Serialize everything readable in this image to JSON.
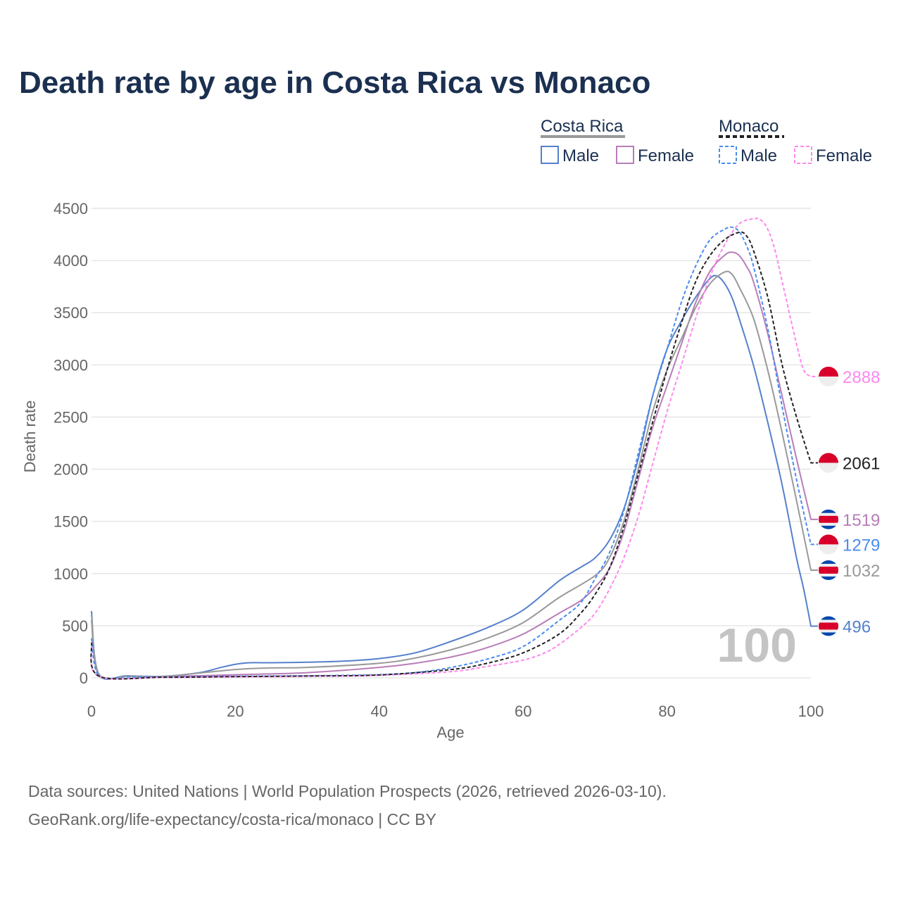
{
  "chart_data": {
    "type": "line",
    "title": "Death rate by age in Costa Rica vs Monaco",
    "xlabel": "Age",
    "ylabel": "Death rate",
    "xlim": [
      0,
      100
    ],
    "ylim": [
      0,
      4500
    ],
    "xticks": [
      0,
      20,
      40,
      60,
      80,
      100
    ],
    "yticks": [
      0,
      500,
      1000,
      1500,
      2000,
      2500,
      3000,
      3500,
      4000,
      4500
    ],
    "grid": true,
    "legend_groups": [
      {
        "label": "Costa Rica",
        "color": "#999999",
        "dash": false
      },
      {
        "label": "Monaco",
        "color": "#222222",
        "dash": true
      }
    ],
    "legend_items": [
      {
        "label": "Male",
        "color": "#5580cc",
        "dash": false
      },
      {
        "label": "Female",
        "color": "#b87db8",
        "dash": false
      },
      {
        "label": "Male",
        "color": "#4a8cf0",
        "dash": true
      },
      {
        "label": "Female",
        "color": "#ff88ee",
        "dash": true
      }
    ],
    "annotation": "100",
    "series": [
      {
        "name": "Costa Rica Male",
        "country": "costa-rica",
        "color": "#5580cc",
        "dash": false,
        "end_label": "496",
        "points": [
          [
            0,
            640
          ],
          [
            1,
            40
          ],
          [
            5,
            20
          ],
          [
            10,
            15
          ],
          [
            15,
            50
          ],
          [
            18,
            100
          ],
          [
            20,
            130
          ],
          [
            22,
            145
          ],
          [
            25,
            145
          ],
          [
            30,
            150
          ],
          [
            35,
            160
          ],
          [
            40,
            185
          ],
          [
            45,
            240
          ],
          [
            50,
            350
          ],
          [
            55,
            480
          ],
          [
            60,
            650
          ],
          [
            65,
            930
          ],
          [
            68,
            1060
          ],
          [
            70,
            1150
          ],
          [
            72,
            1320
          ],
          [
            74,
            1620
          ],
          [
            76,
            2100
          ],
          [
            78,
            2700
          ],
          [
            80,
            3150
          ],
          [
            82,
            3420
          ],
          [
            84,
            3650
          ],
          [
            86,
            3830
          ],
          [
            87,
            3850
          ],
          [
            88,
            3780
          ],
          [
            89,
            3650
          ],
          [
            90,
            3450
          ],
          [
            92,
            3000
          ],
          [
            94,
            2450
          ],
          [
            96,
            1850
          ],
          [
            98,
            1150
          ],
          [
            99,
            850
          ],
          [
            100,
            496
          ]
        ]
      },
      {
        "name": "Costa Rica Female",
        "country": "costa-rica",
        "color": "#b87db8",
        "dash": false,
        "end_label": "1519",
        "points": [
          [
            0,
            550
          ],
          [
            1,
            30
          ],
          [
            5,
            15
          ],
          [
            10,
            12
          ],
          [
            20,
            30
          ],
          [
            30,
            50
          ],
          [
            40,
            100
          ],
          [
            45,
            140
          ],
          [
            50,
            200
          ],
          [
            55,
            290
          ],
          [
            60,
            420
          ],
          [
            65,
            620
          ],
          [
            68,
            740
          ],
          [
            70,
            870
          ],
          [
            72,
            1050
          ],
          [
            74,
            1400
          ],
          [
            76,
            1900
          ],
          [
            78,
            2400
          ],
          [
            80,
            2800
          ],
          [
            82,
            3200
          ],
          [
            84,
            3600
          ],
          [
            86,
            3900
          ],
          [
            88,
            4050
          ],
          [
            89,
            4080
          ],
          [
            90,
            4050
          ],
          [
            91,
            3950
          ],
          [
            92,
            3800
          ],
          [
            94,
            3300
          ],
          [
            96,
            2700
          ],
          [
            98,
            2100
          ],
          [
            100,
            1519
          ]
        ]
      },
      {
        "name": "Costa Rica",
        "country": "costa-rica",
        "color": "#999999",
        "dash": false,
        "end_label": "1032",
        "points": [
          [
            0,
            600
          ],
          [
            1,
            35
          ],
          [
            5,
            18
          ],
          [
            10,
            14
          ],
          [
            20,
            80
          ],
          [
            25,
            95
          ],
          [
            30,
            100
          ],
          [
            40,
            140
          ],
          [
            45,
            190
          ],
          [
            50,
            270
          ],
          [
            55,
            380
          ],
          [
            60,
            530
          ],
          [
            65,
            770
          ],
          [
            70,
            980
          ],
          [
            72,
            1150
          ],
          [
            74,
            1500
          ],
          [
            76,
            2000
          ],
          [
            78,
            2550
          ],
          [
            80,
            2950
          ],
          [
            82,
            3250
          ],
          [
            84,
            3550
          ],
          [
            86,
            3780
          ],
          [
            88,
            3890
          ],
          [
            89,
            3870
          ],
          [
            90,
            3750
          ],
          [
            92,
            3450
          ],
          [
            94,
            2950
          ],
          [
            96,
            2350
          ],
          [
            98,
            1700
          ],
          [
            100,
            1032
          ]
        ]
      },
      {
        "name": "Monaco Male",
        "country": "monaco",
        "color": "#4a8cf0",
        "dash": true,
        "end_label": "1279",
        "points": [
          [
            0,
            380
          ],
          [
            1,
            20
          ],
          [
            5,
            10
          ],
          [
            10,
            8
          ],
          [
            20,
            15
          ],
          [
            30,
            20
          ],
          [
            40,
            30
          ],
          [
            45,
            50
          ],
          [
            50,
            100
          ],
          [
            55,
            180
          ],
          [
            60,
            300
          ],
          [
            65,
            550
          ],
          [
            68,
            720
          ],
          [
            70,
            950
          ],
          [
            72,
            1200
          ],
          [
            74,
            1600
          ],
          [
            76,
            2150
          ],
          [
            78,
            2700
          ],
          [
            80,
            3150
          ],
          [
            82,
            3600
          ],
          [
            84,
            3950
          ],
          [
            86,
            4200
          ],
          [
            88,
            4300
          ],
          [
            89,
            4320
          ],
          [
            90,
            4280
          ],
          [
            91,
            4150
          ],
          [
            92,
            3950
          ],
          [
            94,
            3350
          ],
          [
            96,
            2600
          ],
          [
            98,
            1900
          ],
          [
            100,
            1279
          ]
        ]
      },
      {
        "name": "Monaco Female",
        "country": "monaco",
        "color": "#ff88ee",
        "dash": true,
        "end_label": "2888",
        "points": [
          [
            0,
            300
          ],
          [
            1,
            15
          ],
          [
            10,
            5
          ],
          [
            20,
            10
          ],
          [
            30,
            15
          ],
          [
            40,
            25
          ],
          [
            50,
            60
          ],
          [
            55,
            110
          ],
          [
            60,
            170
          ],
          [
            63,
            240
          ],
          [
            65,
            320
          ],
          [
            68,
            480
          ],
          [
            70,
            620
          ],
          [
            72,
            850
          ],
          [
            74,
            1150
          ],
          [
            76,
            1550
          ],
          [
            78,
            2050
          ],
          [
            80,
            2550
          ],
          [
            82,
            3000
          ],
          [
            84,
            3450
          ],
          [
            86,
            3850
          ],
          [
            88,
            4150
          ],
          [
            90,
            4350
          ],
          [
            92,
            4400
          ],
          [
            93,
            4390
          ],
          [
            94,
            4300
          ],
          [
            95,
            4100
          ],
          [
            96,
            3800
          ],
          [
            98,
            3200
          ],
          [
            99,
            2950
          ],
          [
            100,
            2888
          ]
        ]
      },
      {
        "name": "Monaco",
        "country": "monaco",
        "color": "#222222",
        "dash": true,
        "end_label": "2061",
        "points": [
          [
            0,
            340
          ],
          [
            1,
            18
          ],
          [
            10,
            6
          ],
          [
            20,
            12
          ],
          [
            30,
            18
          ],
          [
            40,
            28
          ],
          [
            50,
            80
          ],
          [
            55,
            140
          ],
          [
            60,
            240
          ],
          [
            65,
            420
          ],
          [
            68,
            620
          ],
          [
            70,
            800
          ],
          [
            72,
            1050
          ],
          [
            74,
            1450
          ],
          [
            76,
            1950
          ],
          [
            78,
            2450
          ],
          [
            80,
            2950
          ],
          [
            82,
            3400
          ],
          [
            84,
            3800
          ],
          [
            86,
            4050
          ],
          [
            88,
            4200
          ],
          [
            90,
            4270
          ],
          [
            91,
            4240
          ],
          [
            92,
            4100
          ],
          [
            94,
            3650
          ],
          [
            96,
            3000
          ],
          [
            98,
            2500
          ],
          [
            100,
            2061
          ]
        ]
      }
    ]
  },
  "footer": {
    "line1": "Data sources: United Nations | World Population Prospects (2026, retrieved 2026-03-10).",
    "line2": "GeoRank.org/life-expectancy/costa-rica/monaco | CC BY"
  }
}
